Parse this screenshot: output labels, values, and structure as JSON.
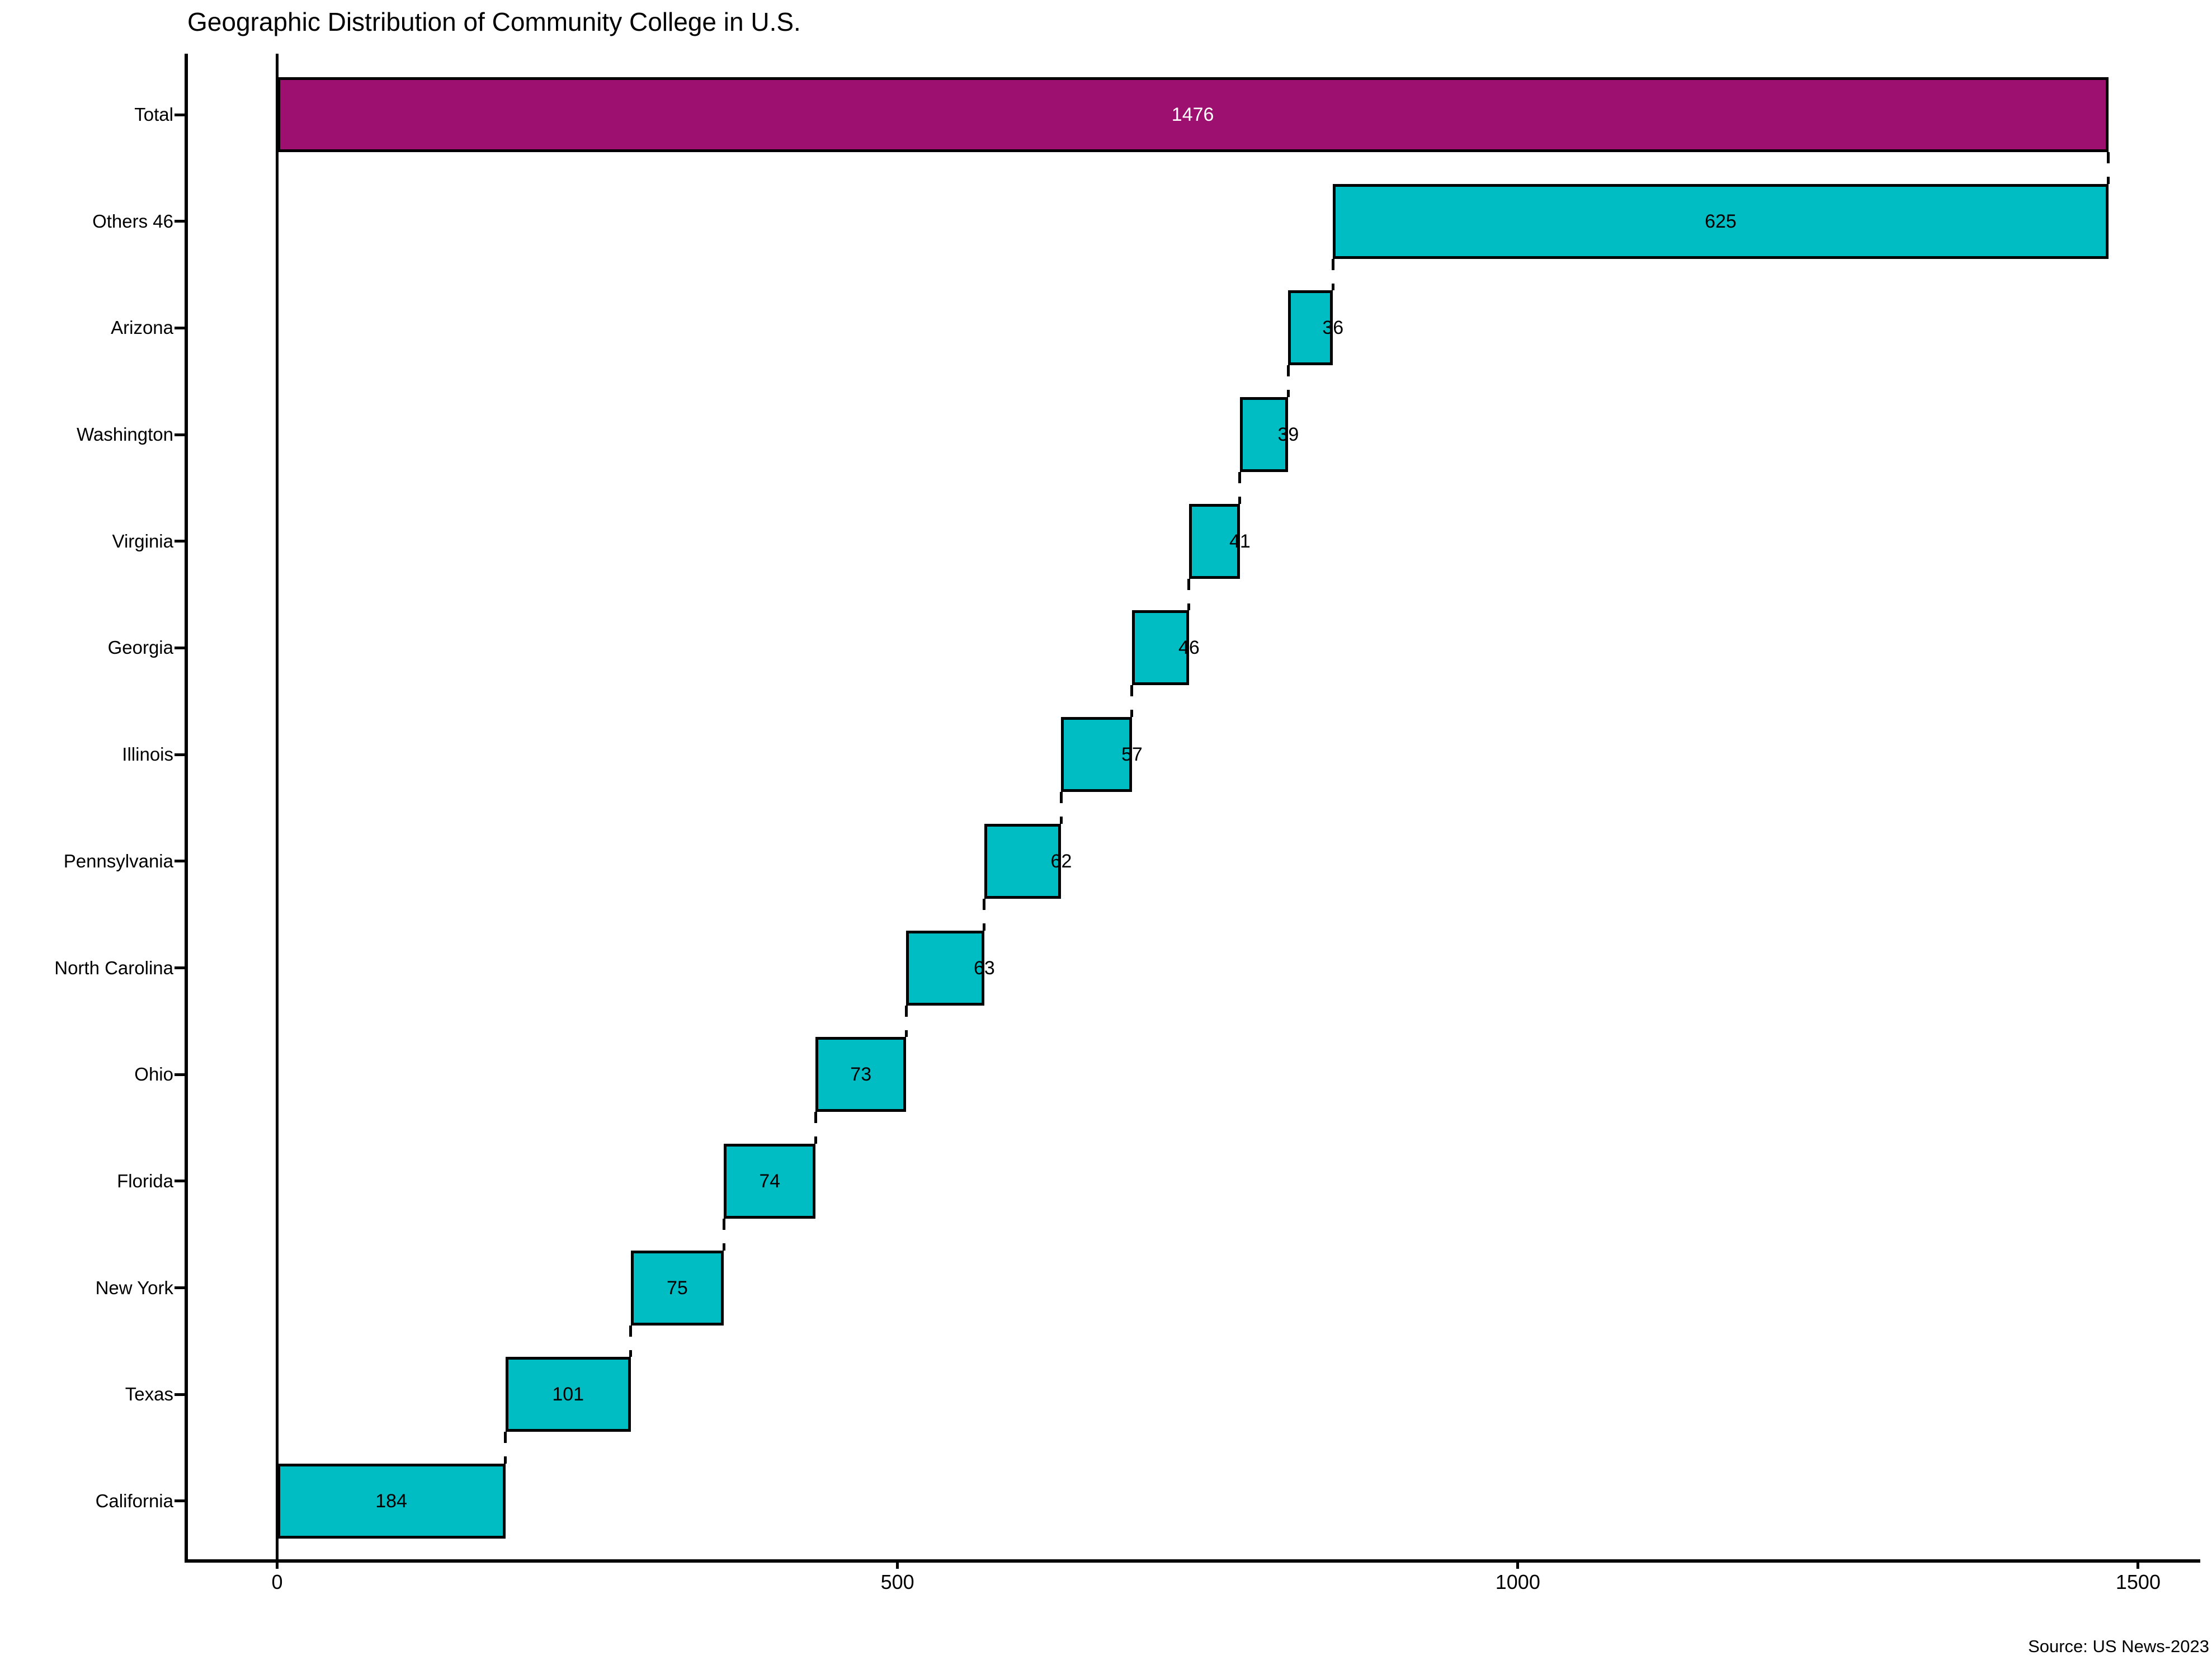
{
  "chart_data": {
    "type": "waterfall",
    "orientation": "horizontal",
    "title": "Geographic Distribution of Community College in U.S.",
    "source_note": "Source: US News-2023",
    "xlabel": "",
    "ylabel": "",
    "x_ticks": [
      0,
      500,
      1000,
      1500
    ],
    "xlim": [
      -73,
      1551
    ],
    "grid": false,
    "legend": "none",
    "colors": {
      "total_bar": "#9E1070",
      "step_bar": "#00BCC3",
      "bar_edge": "#000000",
      "connector": "#000000",
      "total_value_label": "#ffffff",
      "step_value_label": "#000000"
    },
    "categories": [
      "Total",
      "Others 46",
      "Arizona",
      "Washington",
      "Virginia",
      "Georgia",
      "Illinois",
      "Pennsylvania",
      "North Carolina",
      "Ohio",
      "Florida",
      "New York",
      "Texas",
      "California"
    ],
    "items": [
      {
        "label": "Total",
        "value": 1476,
        "start": 0,
        "kind": "total",
        "value_label_position": "center",
        "value_label_color": "#ffffff"
      },
      {
        "label": "Others 46",
        "value": 625,
        "start": 851,
        "kind": "step",
        "value_label_position": "center",
        "value_label_color": "#000000"
      },
      {
        "label": "Arizona",
        "value": 36,
        "start": 815,
        "kind": "step",
        "value_label_position": "end",
        "value_label_color": "#000000"
      },
      {
        "label": "Washington",
        "value": 39,
        "start": 776,
        "kind": "step",
        "value_label_position": "end",
        "value_label_color": "#000000"
      },
      {
        "label": "Virginia",
        "value": 41,
        "start": 735,
        "kind": "step",
        "value_label_position": "end",
        "value_label_color": "#000000"
      },
      {
        "label": "Georgia",
        "value": 46,
        "start": 689,
        "kind": "step",
        "value_label_position": "end",
        "value_label_color": "#000000"
      },
      {
        "label": "Illinois",
        "value": 57,
        "start": 632,
        "kind": "step",
        "value_label_position": "end",
        "value_label_color": "#000000"
      },
      {
        "label": "Pennsylvania",
        "value": 62,
        "start": 570,
        "kind": "step",
        "value_label_position": "end",
        "value_label_color": "#000000"
      },
      {
        "label": "North Carolina",
        "value": 63,
        "start": 507,
        "kind": "step",
        "value_label_position": "end",
        "value_label_color": "#000000"
      },
      {
        "label": "Ohio",
        "value": 73,
        "start": 434,
        "kind": "step",
        "value_label_position": "center",
        "value_label_color": "#000000"
      },
      {
        "label": "Florida",
        "value": 74,
        "start": 360,
        "kind": "step",
        "value_label_position": "center",
        "value_label_color": "#000000"
      },
      {
        "label": "New York",
        "value": 75,
        "start": 285,
        "kind": "step",
        "value_label_position": "center",
        "value_label_color": "#000000"
      },
      {
        "label": "Texas",
        "value": 101,
        "start": 184,
        "kind": "step",
        "value_label_position": "center",
        "value_label_color": "#000000"
      },
      {
        "label": "California",
        "value": 184,
        "start": 0,
        "kind": "step",
        "value_label_position": "center",
        "value_label_color": "#000000"
      }
    ]
  }
}
